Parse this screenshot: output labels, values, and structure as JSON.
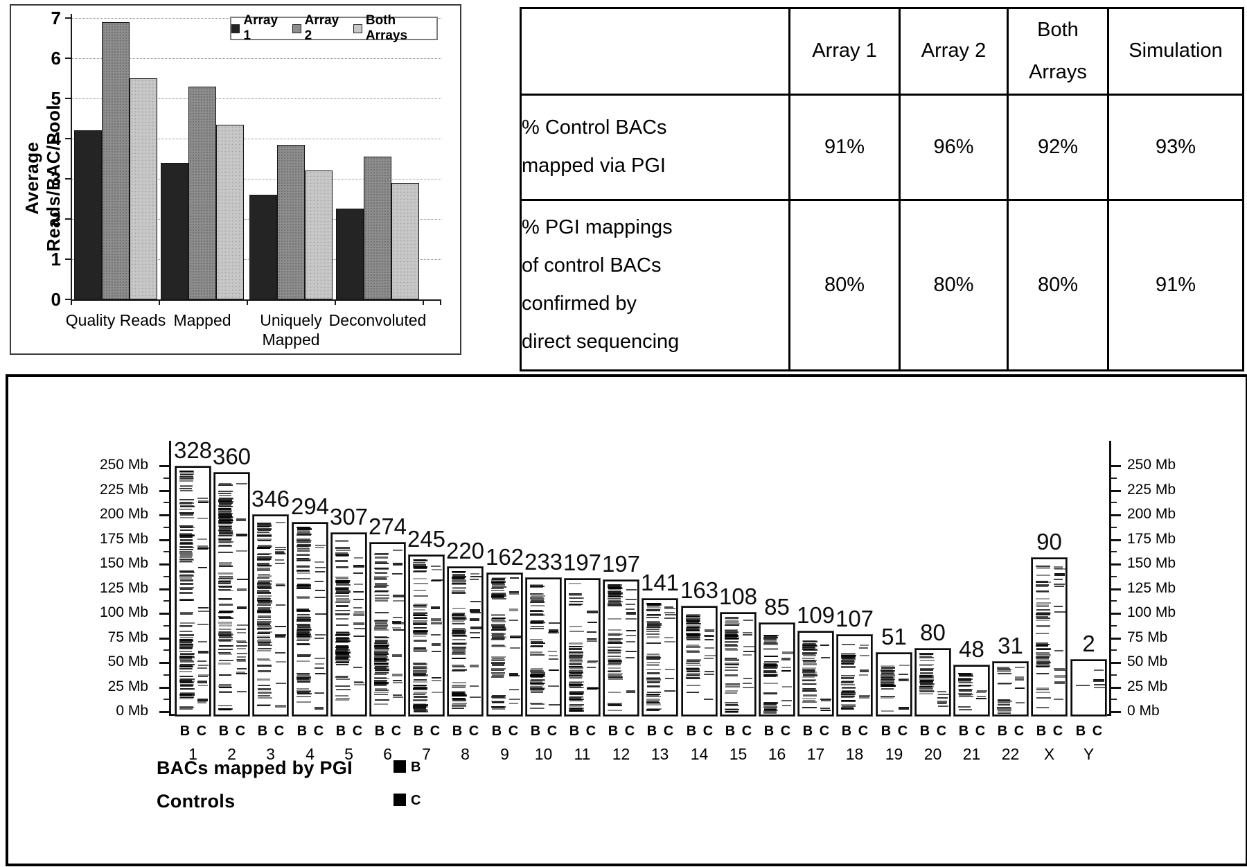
{
  "chart_data": [
    {
      "type": "bar",
      "title": "",
      "ylabel": "Average Reads/BAC/Pool",
      "xlabel": "",
      "ylim": [
        0,
        7
      ],
      "ytick_step": 1,
      "grid": true,
      "legend_position": "top-right",
      "categories": [
        "Quality Reads",
        "Mapped",
        "Uniquely Mapped",
        "Deconvoluted"
      ],
      "series": [
        {
          "name": "Array 1",
          "color": "#242424",
          "values": [
            4.2,
            3.4,
            2.6,
            2.25
          ]
        },
        {
          "name": "Array 2",
          "color": "#8d8d8d",
          "values": [
            6.9,
            5.3,
            3.85,
            3.55
          ]
        },
        {
          "name": "Both Arrays",
          "color": "#c7c7c7",
          "values": [
            5.5,
            4.35,
            3.2,
            2.9
          ]
        }
      ]
    },
    {
      "type": "table",
      "headers": [
        "",
        "Array 1",
        "Array 2",
        "Both Arrays",
        "Simulation"
      ],
      "rows": [
        {
          "label": "% Control BACs mapped via PGI",
          "label_lines": [
            "% Control BACs",
            "mapped via PGI"
          ],
          "values": [
            "91%",
            "96%",
            "92%",
            "93%"
          ]
        },
        {
          "label": "% PGI mappings of control BACs confirmed by direct sequencing",
          "label_lines": [
            "% PGI mappings",
            "of control BACs",
            "confirmed by",
            "direct sequencing"
          ],
          "values": [
            "80%",
            "80%",
            "80%",
            "91%"
          ]
        }
      ]
    },
    {
      "type": "ideogram",
      "title": "",
      "axis": {
        "unit": "Mb",
        "min": 0,
        "max": 250,
        "step": 25,
        "minor_step": 12.5,
        "tick_labels": [
          "0 Mb",
          "25 Mb",
          "50 Mb",
          "75 Mb",
          "100 Mb",
          "125 Mb",
          "150 Mb",
          "175 Mb",
          "200 Mb",
          "225 Mb",
          "250 Mb"
        ]
      },
      "column_labels": [
        "B",
        "C"
      ],
      "chromosomes": [
        {
          "name": "1",
          "bacs_mapped": 328,
          "size_mb": 249
        },
        {
          "name": "2",
          "bacs_mapped": 360,
          "size_mb": 243
        },
        {
          "name": "3",
          "bacs_mapped": 346,
          "size_mb": 200
        },
        {
          "name": "4",
          "bacs_mapped": 294,
          "size_mb": 192
        },
        {
          "name": "5",
          "bacs_mapped": 307,
          "size_mb": 182
        },
        {
          "name": "6",
          "bacs_mapped": 274,
          "size_mb": 172
        },
        {
          "name": "7",
          "bacs_mapped": 245,
          "size_mb": 159
        },
        {
          "name": "8",
          "bacs_mapped": 220,
          "size_mb": 147
        },
        {
          "name": "9",
          "bacs_mapped": 162,
          "size_mb": 141
        },
        {
          "name": "10",
          "bacs_mapped": 233,
          "size_mb": 136
        },
        {
          "name": "11",
          "bacs_mapped": 197,
          "size_mb": 135
        },
        {
          "name": "12",
          "bacs_mapped": 197,
          "size_mb": 134
        },
        {
          "name": "13",
          "bacs_mapped": 141,
          "size_mb": 115
        },
        {
          "name": "14",
          "bacs_mapped": 163,
          "size_mb": 107
        },
        {
          "name": "15",
          "bacs_mapped": 108,
          "size_mb": 101
        },
        {
          "name": "16",
          "bacs_mapped": 85,
          "size_mb": 90
        },
        {
          "name": "17",
          "bacs_mapped": 109,
          "size_mb": 82
        },
        {
          "name": "18",
          "bacs_mapped": 107,
          "size_mb": 78
        },
        {
          "name": "19",
          "bacs_mapped": 51,
          "size_mb": 60
        },
        {
          "name": "20",
          "bacs_mapped": 80,
          "size_mb": 64
        },
        {
          "name": "21",
          "bacs_mapped": 48,
          "size_mb": 47
        },
        {
          "name": "22",
          "bacs_mapped": 31,
          "size_mb": 51
        },
        {
          "name": "X",
          "bacs_mapped": 90,
          "size_mb": 156
        },
        {
          "name": "Y",
          "bacs_mapped": 2,
          "size_mb": 53
        }
      ],
      "legend": [
        {
          "symbol": "B",
          "label": "BACs mapped by PGI"
        },
        {
          "symbol": "C",
          "label": "Controls"
        }
      ]
    }
  ]
}
